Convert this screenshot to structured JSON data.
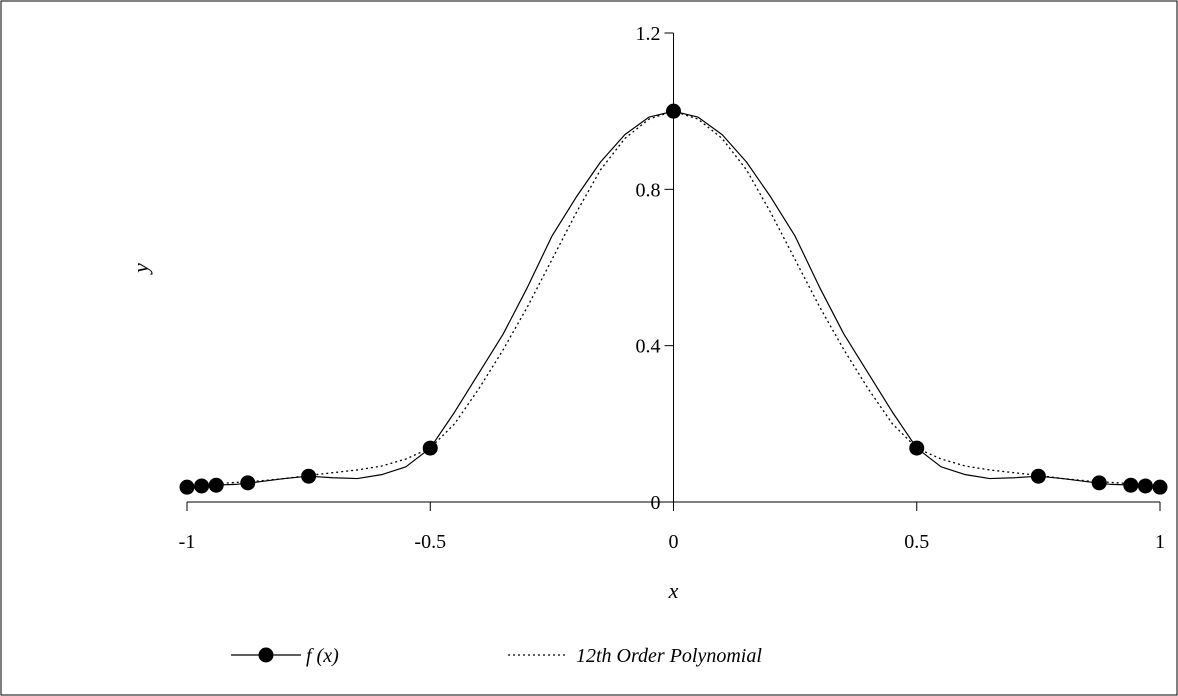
{
  "chart_data": {
    "type": "line",
    "xlabel": "x",
    "ylabel": "y",
    "xlim": [
      -1,
      1
    ],
    "ylim": [
      0,
      1.2
    ],
    "x_ticks": [
      -1,
      -0.5,
      0,
      0.5,
      1
    ],
    "x_tick_labels": [
      "-1",
      "-0.5",
      "0",
      "0.5",
      "1"
    ],
    "y_ticks": [
      0,
      0.4,
      0.8,
      1.2
    ],
    "y_tick_labels": [
      "0",
      "0.4",
      "0.8",
      "1.2"
    ],
    "grid": false,
    "legend_position": "bottom",
    "series": [
      {
        "name": "f (x)",
        "style": "solid-with-markers",
        "color": "#000000",
        "markers": {
          "x": [
            -1,
            -0.97,
            -0.94,
            -0.875,
            -0.75,
            -0.5,
            0,
            0.5,
            0.75,
            0.875,
            0.94,
            0.97,
            1
          ],
          "y": [
            0.038,
            0.041,
            0.043,
            0.049,
            0.066,
            0.138,
            1.0,
            0.138,
            0.066,
            0.049,
            0.043,
            0.041,
            0.038
          ]
        },
        "curve": {
          "x": [
            -1,
            -0.95,
            -0.9,
            -0.85,
            -0.8,
            -0.75,
            -0.7,
            -0.65,
            -0.6,
            -0.55,
            -0.5,
            -0.45,
            -0.4,
            -0.35,
            -0.3,
            -0.25,
            -0.2,
            -0.15,
            -0.1,
            -0.05,
            0,
            0.05,
            0.1,
            0.15,
            0.2,
            0.25,
            0.3,
            0.35,
            0.4,
            0.45,
            0.5,
            0.55,
            0.6,
            0.65,
            0.7,
            0.75,
            0.8,
            0.85,
            0.9,
            0.95,
            1
          ],
          "y": [
            0.038,
            0.043,
            0.045,
            0.052,
            0.06,
            0.066,
            0.062,
            0.06,
            0.07,
            0.09,
            0.138,
            0.23,
            0.33,
            0.43,
            0.55,
            0.68,
            0.78,
            0.87,
            0.94,
            0.985,
            1.0,
            0.985,
            0.94,
            0.87,
            0.78,
            0.68,
            0.55,
            0.43,
            0.33,
            0.23,
            0.138,
            0.09,
            0.07,
            0.06,
            0.062,
            0.066,
            0.06,
            0.052,
            0.045,
            0.043,
            0.038
          ]
        }
      },
      {
        "name": "12th Order Polynomial",
        "style": "dotted",
        "color": "#000000",
        "curve": {
          "x": [
            -1,
            -0.95,
            -0.9,
            -0.85,
            -0.8,
            -0.75,
            -0.7,
            -0.65,
            -0.6,
            -0.55,
            -0.5,
            -0.45,
            -0.4,
            -0.35,
            -0.3,
            -0.25,
            -0.2,
            -0.15,
            -0.1,
            -0.05,
            0,
            0.05,
            0.1,
            0.15,
            0.2,
            0.25,
            0.3,
            0.35,
            0.4,
            0.45,
            0.5,
            0.55,
            0.6,
            0.65,
            0.7,
            0.75,
            0.8,
            0.85,
            0.9,
            0.95,
            1
          ],
          "y": [
            0.038,
            0.046,
            0.05,
            0.054,
            0.06,
            0.068,
            0.075,
            0.082,
            0.092,
            0.11,
            0.138,
            0.2,
            0.29,
            0.39,
            0.5,
            0.62,
            0.74,
            0.85,
            0.93,
            0.98,
            1.0,
            0.98,
            0.93,
            0.85,
            0.74,
            0.62,
            0.5,
            0.39,
            0.29,
            0.2,
            0.138,
            0.11,
            0.092,
            0.082,
            0.075,
            0.068,
            0.06,
            0.054,
            0.05,
            0.046,
            0.038
          ]
        }
      }
    ]
  }
}
